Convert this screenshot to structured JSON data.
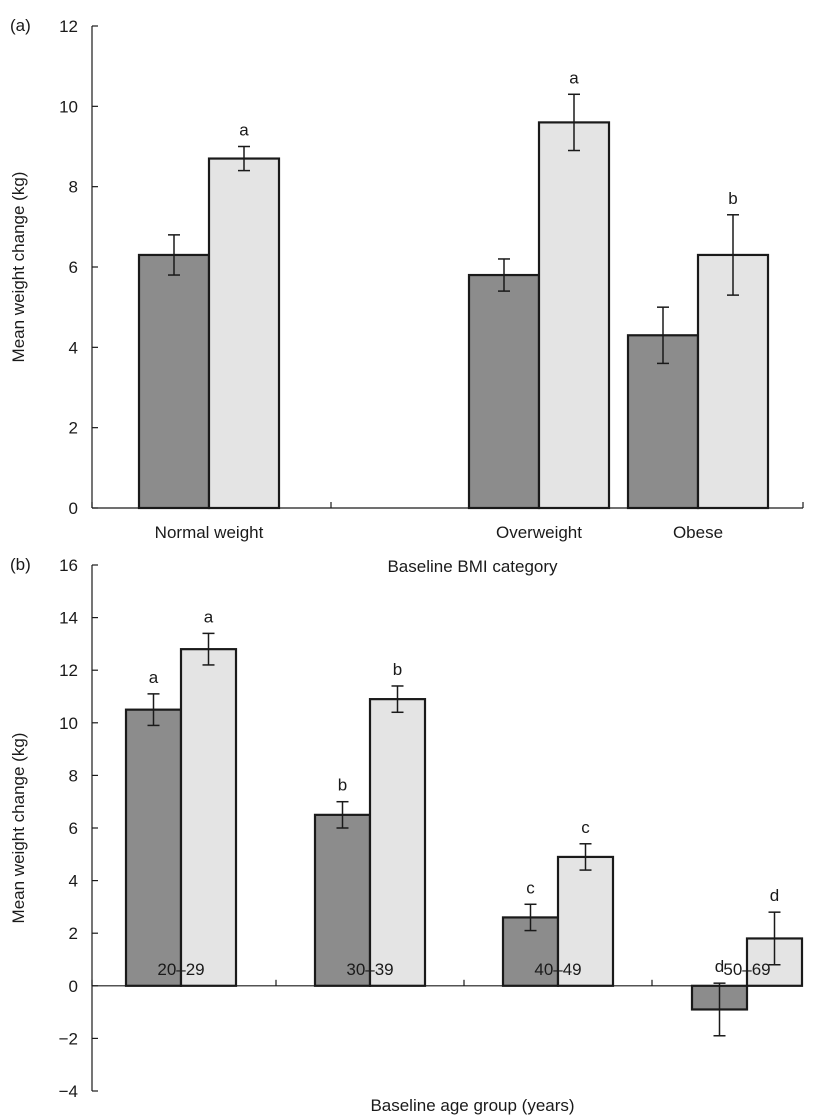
{
  "figure": {
    "colors": {
      "dark_bar": "#8c8c8c",
      "light_bar": "#e4e4e4",
      "stroke": "#1a1a1a"
    }
  },
  "chart_data": [
    {
      "type": "bar",
      "panel_label": "(a)",
      "title": "",
      "xlabel": "Baseline BMI category",
      "ylabel": "Mean weight change (kg)",
      "ylim": [
        0,
        12
      ],
      "yticks": [
        "0",
        "2",
        "4",
        "6",
        "8",
        "10",
        "12"
      ],
      "categories": [
        "Normal weight",
        "Overweight",
        "Obese"
      ],
      "grid": false,
      "legend": "none",
      "series": [
        {
          "color": "#8c8c8c",
          "values": [
            6.3,
            5.8,
            4.3
          ],
          "error_low": [
            5.8,
            5.4,
            3.6
          ],
          "error_high": [
            6.8,
            6.2,
            5.0
          ],
          "annotations": [
            "",
            "",
            ""
          ]
        },
        {
          "color": "#e4e4e4",
          "values": [
            8.7,
            9.6,
            6.3
          ],
          "error_low": [
            8.4,
            8.9,
            5.3
          ],
          "error_high": [
            9.0,
            10.3,
            7.3
          ],
          "annotations": [
            "a",
            "a",
            "b"
          ]
        }
      ]
    },
    {
      "type": "bar",
      "panel_label": "(b)",
      "title": "",
      "xlabel": "Baseline age group (years)",
      "ylabel": "Mean weight change (kg)",
      "ylim": [
        -4,
        16
      ],
      "yticks": [
        "−4",
        "−2",
        "0",
        "2",
        "4",
        "6",
        "8",
        "10",
        "12",
        "14",
        "16"
      ],
      "categories": [
        "20–29",
        "30–39",
        "40–49",
        "50–69"
      ],
      "grid": false,
      "legend": "none",
      "series": [
        {
          "color": "#8c8c8c",
          "values": [
            10.5,
            6.5,
            2.6,
            -0.9
          ],
          "error_low": [
            9.9,
            6.0,
            2.1,
            -1.9
          ],
          "error_high": [
            11.1,
            7.0,
            3.1,
            0.1
          ],
          "annotations": [
            "a",
            "b",
            "c",
            "d"
          ]
        },
        {
          "color": "#e4e4e4",
          "values": [
            12.8,
            10.9,
            4.9,
            1.8
          ],
          "error_low": [
            12.2,
            10.4,
            4.4,
            0.8
          ],
          "error_high": [
            13.4,
            11.4,
            5.4,
            2.8
          ],
          "annotations": [
            "a",
            "b",
            "c",
            "d"
          ]
        }
      ]
    }
  ]
}
